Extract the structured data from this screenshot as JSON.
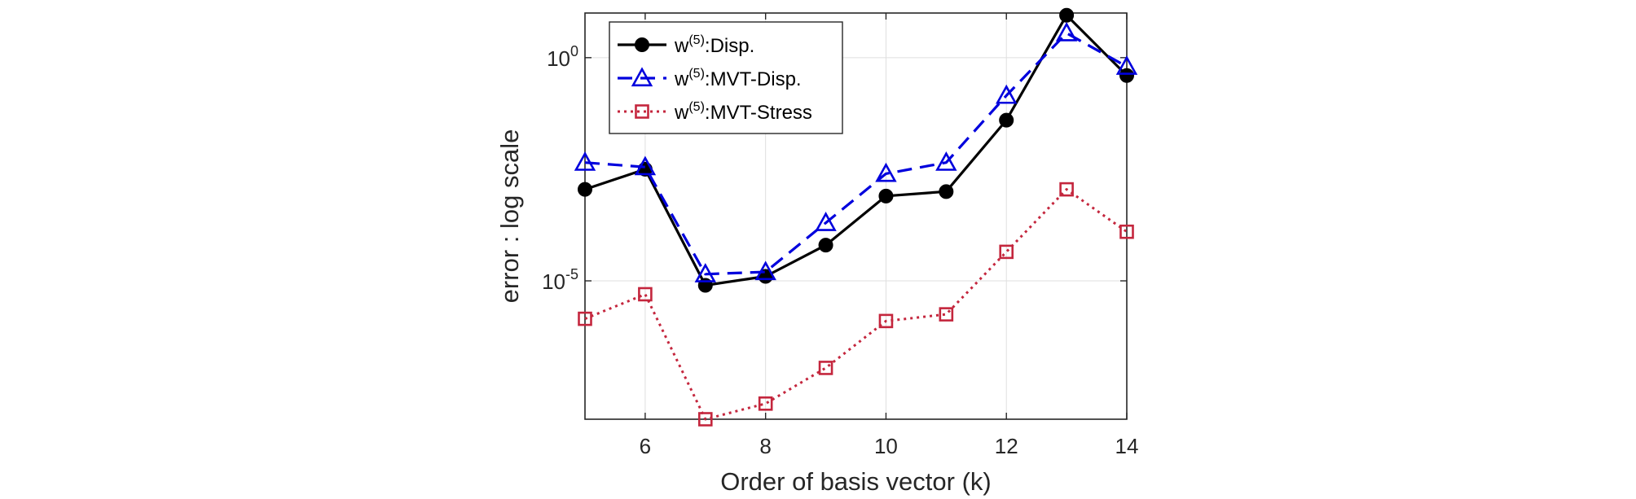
{
  "chart_data": {
    "type": "line",
    "title": "",
    "xlabel": "Order of basis vector (k)",
    "ylabel": "error : log scale",
    "yscale": "log",
    "xlim": [
      5,
      14
    ],
    "ylim_log10": [
      -8.1,
      1.0
    ],
    "x_ticks": [
      6,
      8,
      10,
      12,
      14
    ],
    "x_tick_labels": [
      "6",
      "8",
      "10",
      "12",
      "14"
    ],
    "y_ticks_log10": [
      -5,
      0
    ],
    "y_tick_labels": [
      {
        "base": "10",
        "exp": "-5"
      },
      {
        "base": "10",
        "exp": "0"
      }
    ],
    "grid": true,
    "legend_location": "top-left",
    "x": [
      5,
      6,
      7,
      8,
      9,
      10,
      11,
      12,
      13,
      14
    ],
    "series": [
      {
        "name": "w(5):Disp.",
        "legend_base": "w",
        "legend_sup": "(5)",
        "legend_rest": ":Disp.",
        "color": "#000000",
        "line_style": "solid",
        "marker": "filled-circle",
        "values_log10": [
          -2.95,
          -2.5,
          -5.1,
          -4.9,
          -4.2,
          -3.1,
          -3.0,
          -1.4,
          0.95,
          -0.4
        ]
      },
      {
        "name": "w(5):MVT-Disp.",
        "legend_base": "w",
        "legend_sup": "(5)",
        "legend_rest": ":MVT-Disp.",
        "color": "#0000dd",
        "line_style": "dashed",
        "marker": "open-triangle",
        "values_log10": [
          -2.35,
          -2.45,
          -4.85,
          -4.8,
          -3.7,
          -2.6,
          -2.35,
          -0.85,
          0.55,
          -0.2
        ]
      },
      {
        "name": "w(5):MVT-Stress",
        "legend_base": "w",
        "legend_sup": "(5)",
        "legend_rest": ":MVT-Stress",
        "color": "#c4263d",
        "line_style": "dotted",
        "marker": "open-square",
        "values_log10": [
          -5.85,
          -5.3,
          -8.1,
          -7.75,
          -6.95,
          -5.9,
          -5.75,
          -4.35,
          -2.95,
          -3.9
        ]
      }
    ]
  }
}
